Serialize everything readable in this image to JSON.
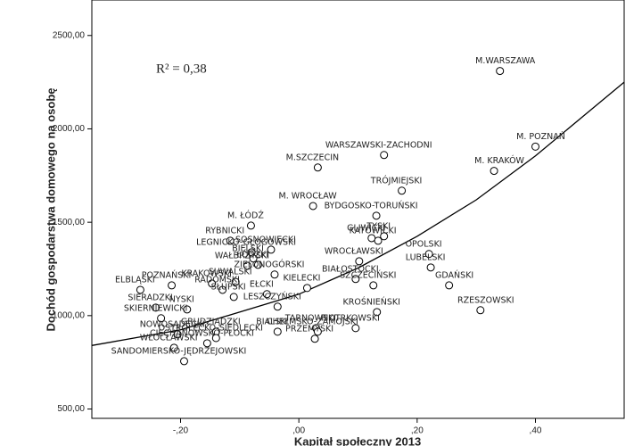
{
  "chart_data": {
    "type": "scatter",
    "y_label": "Dochód gospodarstwa domowego na osobę",
    "x_label": "Kapitał społeczny 2013",
    "annotation": "R² = 0,38",
    "xlim": [
      -0.35,
      0.55
    ],
    "ylim": [
      450,
      2690
    ],
    "xticks": [
      {
        "value": -0.2,
        "label": "-,20"
      },
      {
        "value": 0,
        "label": ",00"
      },
      {
        "value": 0.2,
        "label": ",20"
      },
      {
        "value": 0.4,
        "label": ",40"
      }
    ],
    "yticks": [
      {
        "value": 500,
        "label": "500,00"
      },
      {
        "value": 1000,
        "label": "1000,00"
      },
      {
        "value": 1500,
        "label": "1500,00"
      },
      {
        "value": 2000,
        "label": "2000,00"
      },
      {
        "value": 2500,
        "label": "2500,00"
      }
    ],
    "color": "#000000",
    "labels": [
      "M.WARSZAWA",
      "M. POZNAŃ",
      "M. KRAKÓW",
      "WARSZAWSKI-ZACHODNI",
      "M.SZCZECIN",
      "TRÓJMIEJSKI",
      "BYDGOSKO-TORUŃSKI",
      "M. ŁÓDŹ",
      "M. WROCŁAW",
      "RYBNICKI",
      "SOSNOWIECKI",
      "GLIWICKI",
      "KATOWICKI",
      "TYSKI",
      "LEGNICKO-GŁOGOWSKI",
      "BIELSKI",
      "WAŁBRZYSKI",
      "ŁÓDZKI",
      "WROCŁAWSKI",
      "OPOLSKI",
      "LUBELSKI",
      "ZIELONOGÓRSKI",
      "BIAŁOSTOCKI",
      "KRAKOWSKI",
      "SUWALSKI",
      "GDAŃSKI",
      "ELBLĄSKI",
      "POZNAŃSKI",
      "RADOMSKI",
      "KIELECKI",
      "SZCZECIŃSKI",
      "RZESZOWSKI",
      "SŁUPSKI",
      "EŁCKI",
      "LESZCZYŃSKI",
      "SIERADZKI",
      "NYSKI",
      "KROŚNIEŃSKI",
      "SKIERNIEWICKI",
      "NOWOSĄDECKI",
      "GRUDZIĄDZKI",
      "TARNOWSKI",
      "PIOTRKOWSKI",
      "CHEŁMSKO-ZAMOJSKI",
      "BIALSKI",
      "PRZEMYSKI",
      "CIECHANOWSKO-PŁOCKI",
      "WŁOCŁAWSKI",
      "OSTROŁĘCKO-SIEDLECKI",
      "SANDOMIERSKO-JĘDRZEJOWSKI"
    ],
    "x": [
      0.34,
      0.4,
      0.33,
      0.144,
      0.032,
      0.174,
      0.131,
      -0.081,
      0.024,
      -0.116,
      -0.047,
      0.123,
      0.134,
      0.144,
      -0.08,
      -0.077,
      -0.087,
      -0.069,
      0.102,
      0.22,
      0.223,
      -0.041,
      0.096,
      -0.147,
      -0.107,
      0.254,
      -0.268,
      -0.215,
      -0.129,
      0.014,
      0.126,
      0.307,
      -0.11,
      -0.054,
      -0.036,
      -0.242,
      -0.189,
      0.132,
      -0.233,
      -0.205,
      -0.14,
      0.029,
      0.096,
      0.032,
      -0.036,
      0.027,
      -0.155,
      -0.211,
      -0.14,
      -0.194
    ],
    "values": [
      2310,
      1905,
      1775,
      1860,
      1793,
      1669,
      1535,
      1482,
      1587,
      1401,
      1353,
      1415,
      1401,
      1425,
      1339,
      1306,
      1267,
      1272,
      1291,
      1330,
      1258,
      1220,
      1196,
      1172,
      1181,
      1162,
      1138,
      1162,
      1138,
      1148,
      1162,
      1029,
      1100,
      1115,
      1048,
      1043,
      1033,
      1019,
      986,
      900,
      914,
      933,
      933,
      914,
      914,
      876,
      852,
      828,
      880,
      756
    ],
    "fit": {
      "x": [
        -0.35,
        -0.2,
        0,
        0.1,
        0.2,
        0.3,
        0.4,
        0.55
      ],
      "values": [
        840,
        924,
        1115,
        1255,
        1425,
        1620,
        1855,
        2250
      ]
    }
  }
}
